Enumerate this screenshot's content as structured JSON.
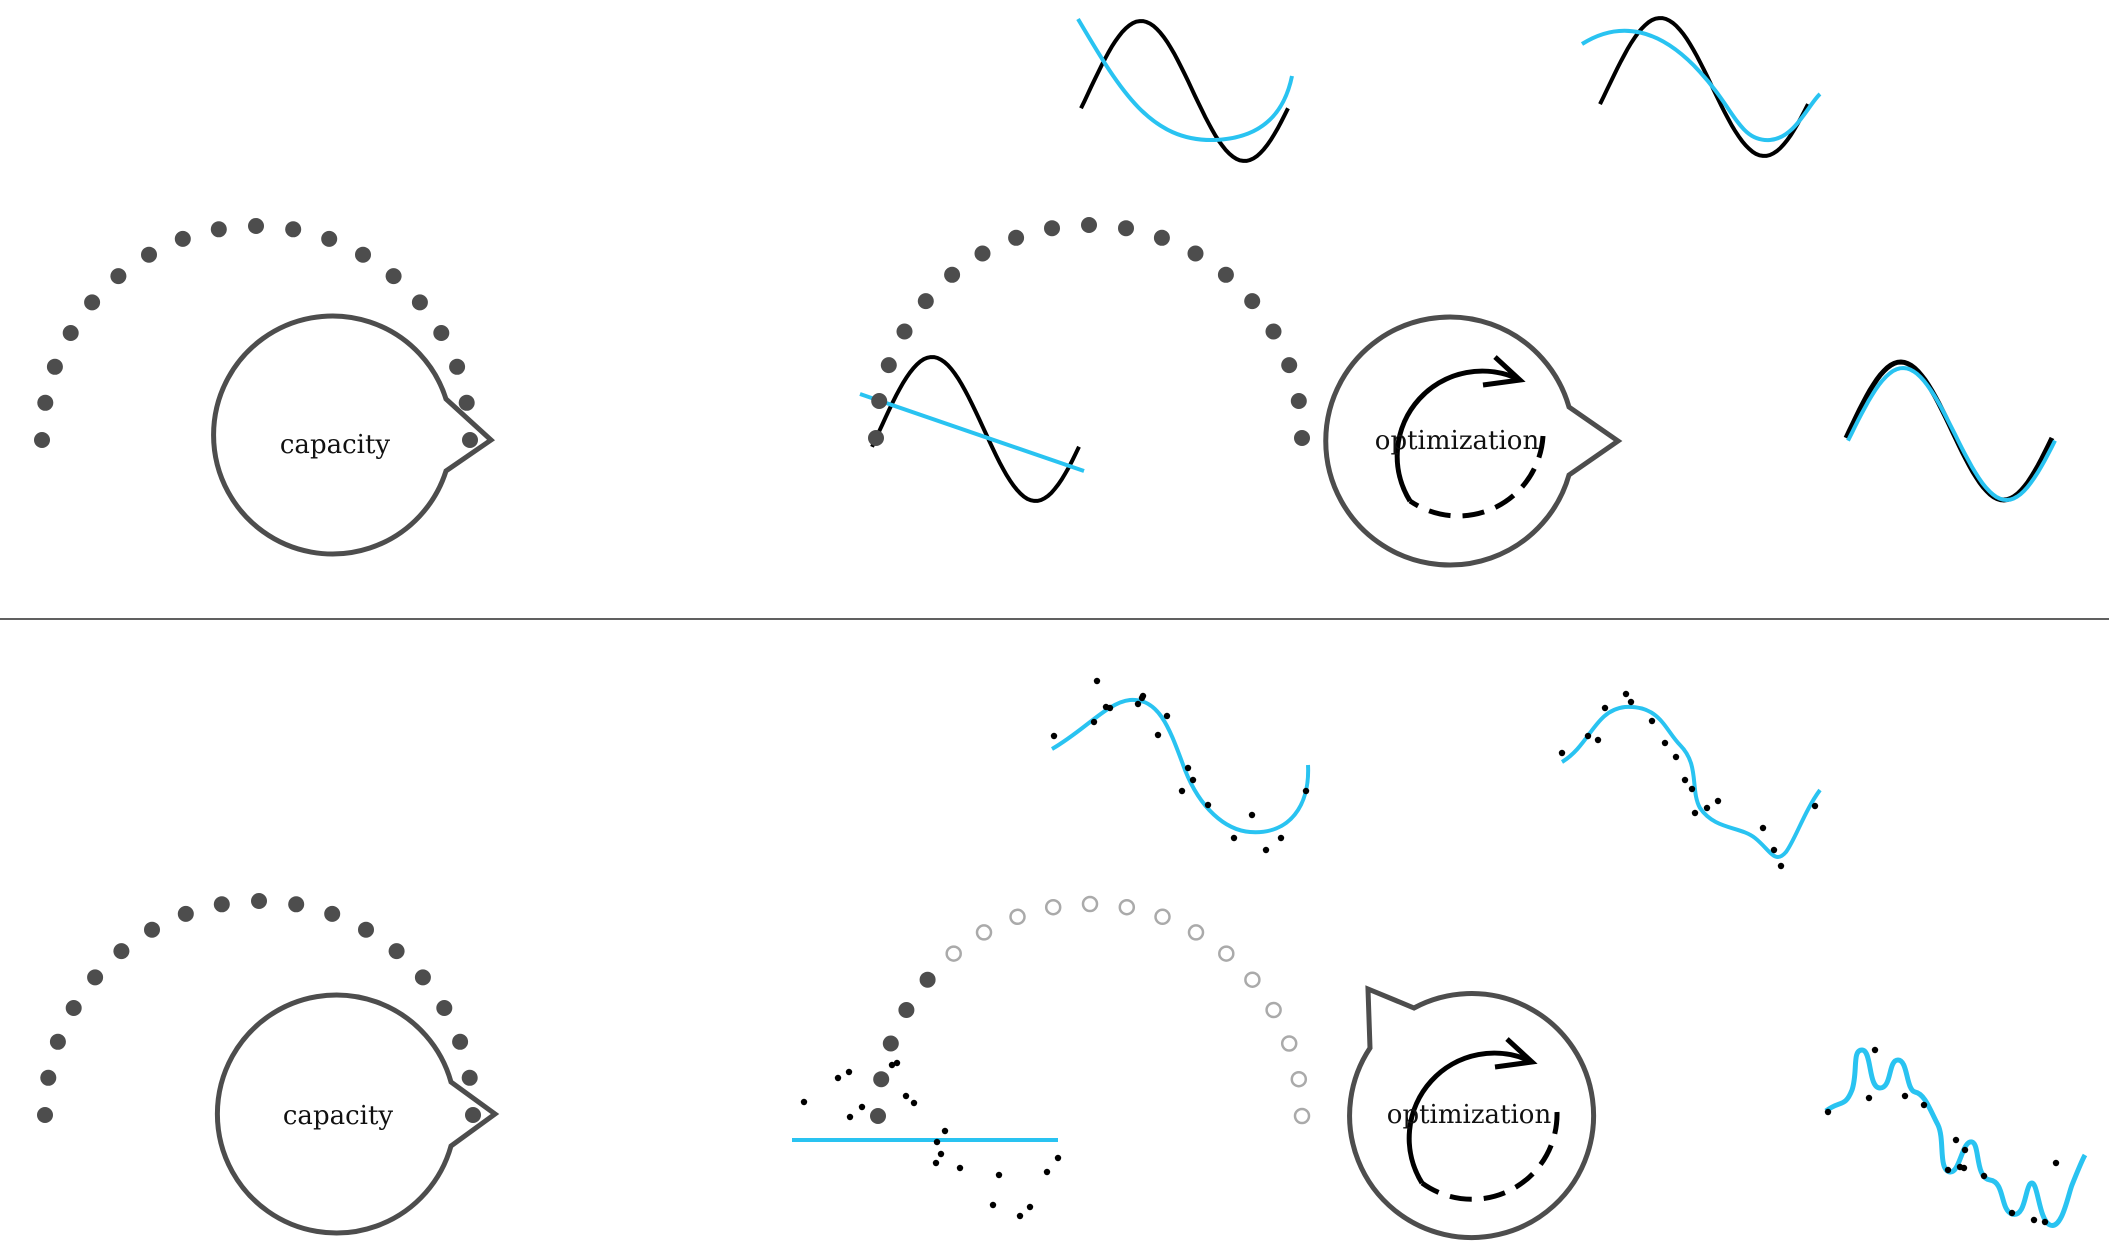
{
  "labels": {
    "top_capacity": "capacity",
    "top_optimization": "optimization",
    "bottom_capacity": "capacity",
    "bottom_optimization": "optimization"
  },
  "colors": {
    "dot": "#4d4d4d",
    "dot_inactive": "#aaaaaa",
    "gauge_stroke": "#4d4d4d",
    "target_curve": "#000000",
    "fit_curve": "#29c3f1",
    "divider": "#000000"
  },
  "icons": {
    "optimization_arrow": "circular-arrow-icon"
  },
  "bottom_optimization_active_dots": 5
}
